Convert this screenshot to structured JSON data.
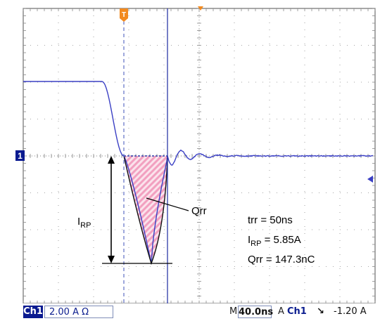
{
  "annotations": {
    "irp_label_main": "I",
    "irp_label_sub": "RP",
    "qrr_label": "Qrr",
    "trr_text": "trr = 50ns",
    "irp_value_main": "I",
    "irp_value_sub": "RP",
    "irp_value_rest": " = 5.85A",
    "qrr_value": "Qrr = 147.3nC"
  },
  "markers": {
    "channel_marker": "1",
    "trigger_marker": "T"
  },
  "status_bar": {
    "channel": "Ch1",
    "vertical_scale": "2.00 A Ω",
    "mode": "M",
    "timebase": "40.0ns",
    "trigger_type": "A",
    "trigger_channel": "Ch1",
    "trigger_slope": "↘",
    "trigger_level": "-1.20 A"
  },
  "colors": {
    "trace": "#3a3fc4",
    "grid": "#8a8a8a",
    "cursor": "#2d3aa8",
    "hatch": "#f2a0c0",
    "trigger_marker": "#f28a20",
    "channel_marker": "#0a1a90"
  }
}
